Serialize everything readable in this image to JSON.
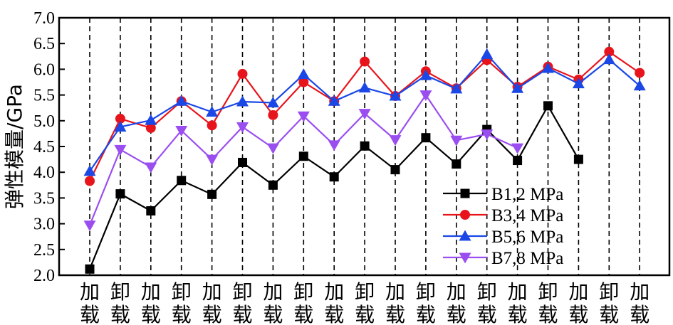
{
  "chart_data": {
    "type": "line",
    "title": "",
    "xlabel": "",
    "ylabel": "弹性模量/GPa",
    "ylim": [
      2.0,
      7.0
    ],
    "yticks": [
      "2.0",
      "2.5",
      "3.0",
      "3.5",
      "4.0",
      "4.5",
      "5.0",
      "5.5",
      "6.0",
      "6.5",
      "7.0"
    ],
    "categories": [
      "加载",
      "卸载",
      "加载",
      "卸载",
      "加载",
      "卸载",
      "加载",
      "卸载",
      "加载",
      "卸载",
      "加载",
      "卸载",
      "加载",
      "卸载",
      "加载",
      "卸载",
      "加载",
      "卸载",
      "加载"
    ],
    "vertical_dashed_gridlines": true,
    "legend_position": "bottom-right",
    "series": [
      {
        "name": "B1,2 MPa",
        "color": "#000000",
        "marker": "square",
        "values": [
          2.12,
          3.58,
          3.25,
          3.84,
          3.57,
          4.19,
          3.75,
          4.31,
          3.91,
          4.51,
          4.05,
          4.67,
          4.16,
          4.83,
          4.23,
          5.29,
          4.25,
          null,
          null
        ]
      },
      {
        "name": "B3,4 MPa",
        "color": "#e8141b",
        "marker": "circle",
        "values": [
          3.83,
          5.04,
          4.86,
          5.38,
          4.91,
          5.91,
          5.11,
          5.75,
          5.38,
          6.15,
          5.48,
          5.96,
          5.63,
          6.18,
          5.66,
          6.05,
          5.8,
          6.34,
          5.93
        ]
      },
      {
        "name": "B5,6 MPa",
        "color": "#1a47e6",
        "marker": "triangle-up",
        "values": [
          4.02,
          4.88,
          5.01,
          5.38,
          5.17,
          5.37,
          5.35,
          5.9,
          5.38,
          5.64,
          5.48,
          5.88,
          5.62,
          6.29,
          5.63,
          6.02,
          5.72,
          6.19,
          5.68
        ]
      },
      {
        "name": "B7,8 MPa",
        "color": "#9b4ef0",
        "marker": "triangle-down",
        "values": [
          2.97,
          4.44,
          4.1,
          4.81,
          4.25,
          4.88,
          4.47,
          5.09,
          4.53,
          5.14,
          4.63,
          5.5,
          4.62,
          4.74,
          4.47,
          null,
          null,
          null,
          null
        ]
      }
    ]
  }
}
